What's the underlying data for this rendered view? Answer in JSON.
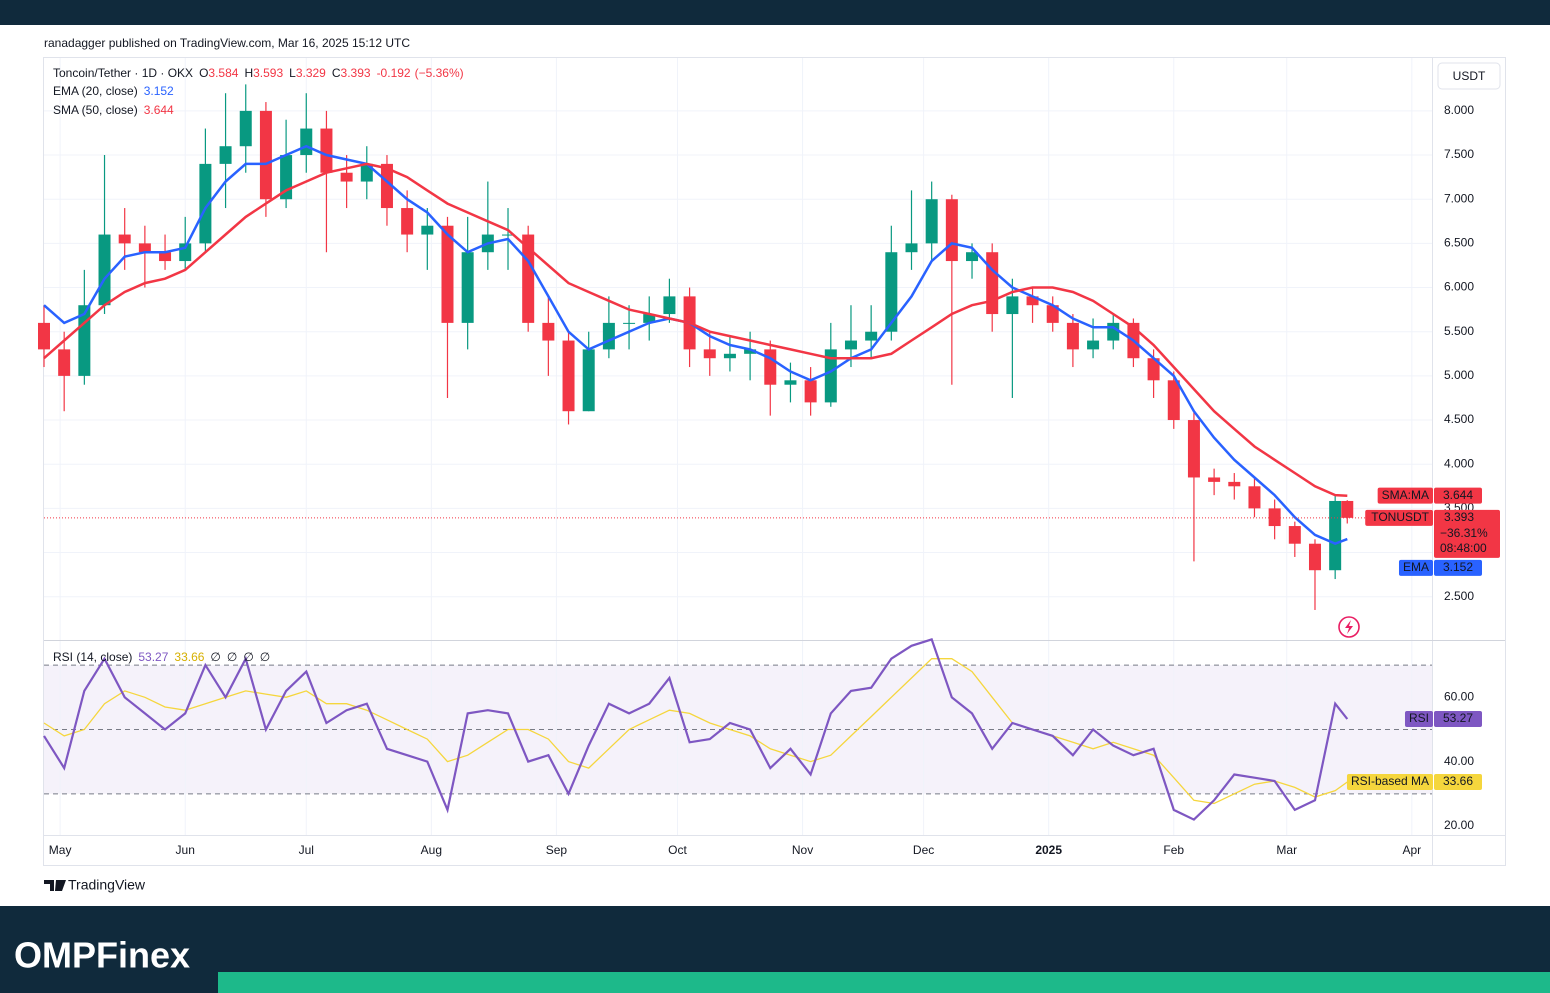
{
  "header": {
    "published": "ranadagger published on TradingView.com, Mar 16, 2025 15:12 UTC"
  },
  "footer": {
    "logo": "TradingView",
    "brand": "OMPFinex"
  },
  "chart_data": {
    "type": "candlestick",
    "symbol": "Toncoin/Tether · 1D · OKX",
    "quote_keys": [
      "O",
      "H",
      "L",
      "C"
    ],
    "change": -0.192,
    "change_pct": {
      "value": -5.36,
      "label": "(−5.36%)"
    },
    "currency": "USDT",
    "up_color": "#089981",
    "down_color": "#f23645",
    "grid": true,
    "x": [
      -4,
      1,
      6,
      11,
      16,
      21,
      26,
      31,
      36,
      41,
      46,
      51,
      56,
      61,
      66,
      71,
      76,
      81,
      86,
      91,
      96,
      101,
      106,
      111,
      116,
      121,
      126,
      131,
      136,
      141,
      146,
      151,
      156,
      161,
      166,
      171,
      176,
      181,
      186,
      191,
      196,
      201,
      206,
      211,
      216,
      221,
      226,
      231,
      236,
      241,
      246,
      251,
      256,
      261,
      266,
      271,
      276,
      281,
      286,
      291,
      296,
      301,
      306,
      311,
      316,
      319
    ],
    "open": [
      5.6,
      5.3,
      5.0,
      5.8,
      6.6,
      6.5,
      6.4,
      6.3,
      6.5,
      7.4,
      7.6,
      8.0,
      7.0,
      7.5,
      7.8,
      7.3,
      7.2,
      7.4,
      6.9,
      6.6,
      6.7,
      5.6,
      6.4,
      6.6,
      6.6,
      5.6,
      5.4,
      4.6,
      5.3,
      5.6,
      5.6,
      5.7,
      5.9,
      5.3,
      5.2,
      5.25,
      5.3,
      4.9,
      4.95,
      4.7,
      5.3,
      5.4,
      5.5,
      6.4,
      6.5,
      7.0,
      6.3,
      6.4,
      5.7,
      5.9,
      5.8,
      5.6,
      5.3,
      5.4,
      5.6,
      5.2,
      4.95,
      4.5,
      3.85,
      3.8,
      3.75,
      3.5,
      3.3,
      3.1,
      2.8,
      3.584
    ],
    "high": [
      5.8,
      5.5,
      6.2,
      7.5,
      6.9,
      6.7,
      6.6,
      6.8,
      7.8,
      8.2,
      8.3,
      8.1,
      7.9,
      8.2,
      8.0,
      7.5,
      7.6,
      7.5,
      7.1,
      6.9,
      6.8,
      6.8,
      7.2,
      6.9,
      6.7,
      5.9,
      5.5,
      5.5,
      5.9,
      5.8,
      5.9,
      6.1,
      6.0,
      5.5,
      5.45,
      5.5,
      5.4,
      5.15,
      5.1,
      5.6,
      5.8,
      5.8,
      6.7,
      7.1,
      7.2,
      7.05,
      6.5,
      6.5,
      6.1,
      6.0,
      5.9,
      5.7,
      5.65,
      5.7,
      5.65,
      5.3,
      5.05,
      4.6,
      3.95,
      3.9,
      3.85,
      3.6,
      3.35,
      3.15,
      3.65,
      3.593
    ],
    "low": [
      5.1,
      4.6,
      4.9,
      5.7,
      6.2,
      6.0,
      6.2,
      6.2,
      6.4,
      6.9,
      7.3,
      6.8,
      6.9,
      7.3,
      6.4,
      6.9,
      7.0,
      6.7,
      6.4,
      6.2,
      4.75,
      5.3,
      6.2,
      6.2,
      5.5,
      5.0,
      4.45,
      4.6,
      5.2,
      5.3,
      5.4,
      5.6,
      5.1,
      5.0,
      5.05,
      4.95,
      4.55,
      4.7,
      4.55,
      4.65,
      5.1,
      5.2,
      5.4,
      6.2,
      6.3,
      4.9,
      6.1,
      5.5,
      4.75,
      5.6,
      5.5,
      5.1,
      5.2,
      5.3,
      5.1,
      4.75,
      4.4,
      2.9,
      3.65,
      3.6,
      3.4,
      3.15,
      2.95,
      2.35,
      2.7,
      3.329
    ],
    "close": [
      5.3,
      5.0,
      5.8,
      6.6,
      6.5,
      6.4,
      6.3,
      6.5,
      7.4,
      7.6,
      8.0,
      7.0,
      7.5,
      7.8,
      7.3,
      7.2,
      7.4,
      6.9,
      6.6,
      6.7,
      5.6,
      6.4,
      6.6,
      6.6,
      5.6,
      5.4,
      4.6,
      5.3,
      5.6,
      5.6,
      5.7,
      5.9,
      5.3,
      5.2,
      5.25,
      5.3,
      4.9,
      4.95,
      4.7,
      5.3,
      5.4,
      5.5,
      6.4,
      6.5,
      7.0,
      6.3,
      6.4,
      5.7,
      5.9,
      5.8,
      5.6,
      5.3,
      5.4,
      5.6,
      5.2,
      4.95,
      4.5,
      3.85,
      3.8,
      3.75,
      3.5,
      3.3,
      3.1,
      2.8,
      3.584,
      3.393
    ],
    "series": [
      {
        "name": "EMA (20, close)",
        "badge": "EMA",
        "color": "#2962ff",
        "values": [
          5.8,
          5.6,
          5.7,
          6.1,
          6.35,
          6.4,
          6.4,
          6.45,
          6.9,
          7.2,
          7.4,
          7.4,
          7.5,
          7.6,
          7.5,
          7.45,
          7.4,
          7.2,
          7.0,
          6.85,
          6.6,
          6.4,
          6.5,
          6.55,
          6.3,
          5.9,
          5.5,
          5.3,
          5.4,
          5.5,
          5.6,
          5.65,
          5.6,
          5.45,
          5.35,
          5.3,
          5.2,
          5.05,
          4.95,
          5.05,
          5.2,
          5.3,
          5.6,
          5.9,
          6.3,
          6.5,
          6.45,
          6.2,
          6.0,
          5.9,
          5.8,
          5.65,
          5.55,
          5.55,
          5.4,
          5.2,
          5.0,
          4.6,
          4.3,
          4.05,
          3.85,
          3.65,
          3.4,
          3.2,
          3.1,
          3.152
        ]
      },
      {
        "name": "SMA (50, close)",
        "badge": "SMA:MA",
        "color": "#f23645",
        "values": [
          5.2,
          5.4,
          5.6,
          5.8,
          5.95,
          6.05,
          6.1,
          6.2,
          6.4,
          6.6,
          6.8,
          6.95,
          7.1,
          7.2,
          7.3,
          7.35,
          7.4,
          7.35,
          7.25,
          7.1,
          6.95,
          6.85,
          6.75,
          6.65,
          6.45,
          6.25,
          6.05,
          5.95,
          5.85,
          5.75,
          5.7,
          5.65,
          5.6,
          5.5,
          5.45,
          5.4,
          5.35,
          5.3,
          5.25,
          5.2,
          5.2,
          5.2,
          5.25,
          5.4,
          5.55,
          5.7,
          5.8,
          5.85,
          5.95,
          6.0,
          6.0,
          5.95,
          5.85,
          5.7,
          5.55,
          5.35,
          5.1,
          4.85,
          4.6,
          4.4,
          4.2,
          4.05,
          3.9,
          3.75,
          3.65,
          3.644
        ]
      }
    ],
    "price_badge": {
      "label": "TONUSDT",
      "change": {
        "value": -36.31,
        "label": "−36.31%"
      },
      "countdown": "08:48:00"
    },
    "xlim": [
      -4,
      340
    ],
    "xticks": [
      {
        "value": 0,
        "label": "May"
      },
      {
        "value": 31,
        "label": "Jun"
      },
      {
        "value": 61,
        "label": "Jul"
      },
      {
        "value": 92,
        "label": "Aug"
      },
      {
        "value": 123,
        "label": "Sep"
      },
      {
        "value": 153,
        "label": "Oct"
      },
      {
        "value": 184,
        "label": "Nov"
      },
      {
        "value": 214,
        "label": "Dec"
      },
      {
        "value": 245,
        "label": "2025"
      },
      {
        "value": 276,
        "label": "Feb"
      },
      {
        "value": 304,
        "label": "Mar"
      },
      {
        "value": 335,
        "label": "Apr"
      }
    ],
    "ylim": [
      2.01,
      8.61
    ],
    "yticks": [
      {
        "value": 2.5,
        "label": "2.500"
      },
      {
        "value": 3,
        "label": "3.000"
      },
      {
        "value": 3.5,
        "label": "3.500"
      },
      {
        "value": 4,
        "label": "4.000"
      },
      {
        "value": 4.5,
        "label": "4.500"
      },
      {
        "value": 5,
        "label": "5.000"
      },
      {
        "value": 5.5,
        "label": "5.500"
      },
      {
        "value": 6,
        "label": "6.000"
      },
      {
        "value": 6.5,
        "label": "6.500"
      },
      {
        "value": 7,
        "label": "7.000"
      },
      {
        "value": 7.5,
        "label": "7.500"
      },
      {
        "value": 8,
        "label": "8.000"
      }
    ],
    "rsi": {
      "name": "RSI (14, close)",
      "badge": "RSI",
      "color": "#7e57c2",
      "values": [
        48,
        38,
        62,
        72,
        60,
        55,
        50,
        55,
        70,
        60,
        72,
        50,
        62,
        68,
        52,
        56,
        58,
        44,
        42,
        40,
        25,
        55,
        56,
        55,
        40,
        42,
        30,
        45,
        58,
        55,
        58,
        66,
        46,
        47,
        52,
        50,
        38,
        44,
        36,
        55,
        62,
        63,
        72,
        76,
        78,
        60,
        55,
        44,
        52,
        50,
        48,
        42,
        50,
        45,
        42,
        44,
        25,
        22,
        28,
        36,
        35,
        34,
        25,
        28,
        58,
        53.27
      ],
      "ma": {
        "name": "RSI-based MA",
        "color": "#f5d63d",
        "values": [
          52,
          48,
          50,
          58,
          62,
          60,
          57,
          56,
          58,
          60,
          62,
          61,
          60,
          62,
          58,
          58,
          56,
          53,
          50,
          47,
          40,
          42,
          46,
          50,
          50,
          47,
          40,
          38,
          44,
          50,
          53,
          56,
          55,
          52,
          50,
          48,
          44,
          42,
          40,
          42,
          48,
          54,
          60,
          66,
          72,
          72,
          68,
          60,
          52,
          50,
          48,
          46,
          44,
          46,
          44,
          42,
          35,
          28,
          27,
          30,
          33,
          34,
          32,
          29,
          31,
          33.66
        ]
      },
      "extras": [
        "∅",
        "∅",
        "∅",
        "∅"
      ],
      "ylim": [
        17.2,
        77.5
      ],
      "yticks": [
        {
          "value": 20,
          "label": "20.00"
        },
        {
          "value": 40,
          "label": "40.00"
        },
        {
          "value": 60,
          "label": "60.00"
        }
      ],
      "levels": [
        30,
        50,
        70
      ]
    }
  }
}
